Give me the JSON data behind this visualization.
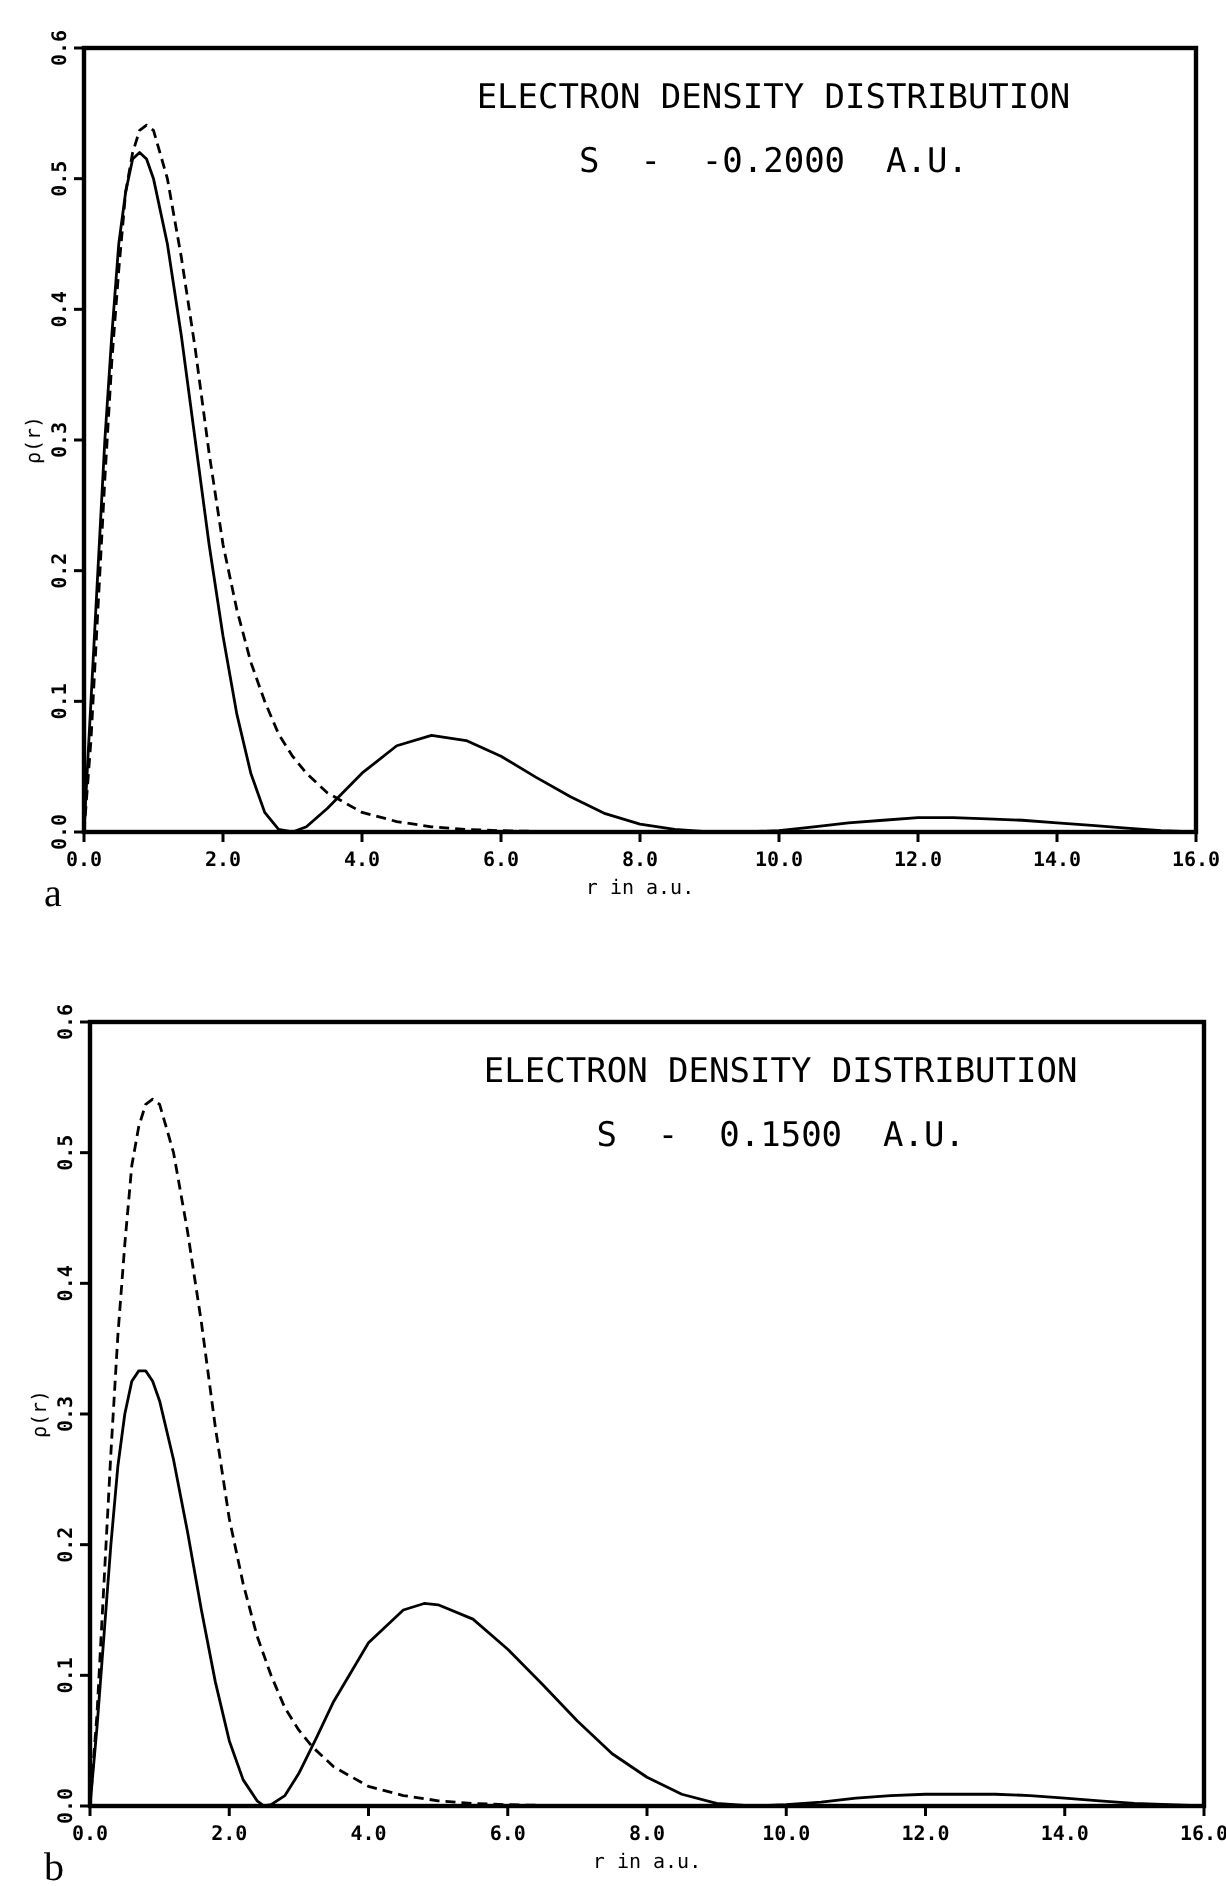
{
  "chart_data": [
    {
      "type": "line",
      "title": "ELECTRON DENSITY DISTRIBUTION",
      "subtitle": "S  -  -0.2000  A.U.",
      "xlabel": "r in a.u.",
      "ylabel": "ρ(r)",
      "annotations": [
        "a"
      ],
      "xlim": [
        0,
        16
      ],
      "ylim": [
        0,
        0.6
      ],
      "xticks": [
        {
          "value": 0,
          "label": "0.0"
        },
        {
          "value": 2,
          "label": "2.0"
        },
        {
          "value": 4,
          "label": "4.0"
        },
        {
          "value": 6,
          "label": "6.0"
        },
        {
          "value": 8,
          "label": "8.0"
        },
        {
          "value": 10,
          "label": "10.0"
        },
        {
          "value": 12,
          "label": "12.0"
        },
        {
          "value": 14,
          "label": "14.0"
        },
        {
          "value": 16,
          "label": "16.0"
        }
      ],
      "yticks": [
        {
          "value": 0,
          "label": "0.0"
        },
        {
          "value": 0.1,
          "label": "0.1"
        },
        {
          "value": 0.2,
          "label": "0.2"
        },
        {
          "value": 0.3,
          "label": "0.3"
        },
        {
          "value": 0.4,
          "label": "0.4"
        },
        {
          "value": 0.5,
          "label": "0.5"
        },
        {
          "value": 0.6,
          "label": "0.6"
        }
      ],
      "marker": "none",
      "series": [
        {
          "color": "#000000",
          "line_style": "solid",
          "x": [
            0,
            0.1,
            0.2,
            0.3,
            0.4,
            0.5,
            0.6,
            0.7,
            0.8,
            0.9,
            1.0,
            1.2,
            1.4,
            1.6,
            1.8,
            2.0,
            2.2,
            2.4,
            2.6,
            2.8,
            3.0,
            3.2,
            3.5,
            4.0,
            4.5,
            5.0,
            5.5,
            6.0,
            6.5,
            7.0,
            7.5,
            8.0,
            8.5,
            9.0,
            9.5,
            10,
            10.5,
            11,
            11.5,
            12,
            12.5,
            13,
            13.5,
            14,
            14.5,
            15,
            15.5,
            16
          ],
          "values": [
            0,
            0.1,
            0.2,
            0.3,
            0.38,
            0.45,
            0.49,
            0.515,
            0.52,
            0.515,
            0.5,
            0.45,
            0.38,
            0.3,
            0.22,
            0.15,
            0.09,
            0.045,
            0.015,
            0.002,
            0,
            0.004,
            0.018,
            0.045,
            0.066,
            0.074,
            0.07,
            0.058,
            0.042,
            0.027,
            0.014,
            0.006,
            0.002,
            0,
            0,
            0.001,
            0.004,
            0.007,
            0.009,
            0.011,
            0.011,
            0.01,
            0.009,
            0.007,
            0.005,
            0.003,
            0.001,
            0
          ]
        },
        {
          "color": "#000000",
          "line_style": "dashed",
          "x": [
            0,
            0.1,
            0.2,
            0.3,
            0.4,
            0.5,
            0.6,
            0.7,
            0.8,
            0.9,
            1.0,
            1.2,
            1.4,
            1.6,
            1.8,
            2.0,
            2.2,
            2.4,
            2.6,
            2.8,
            3.0,
            3.2,
            3.5,
            4.0,
            4.5,
            5.0,
            5.5,
            6.0,
            7.0,
            8.0
          ],
          "values": [
            0,
            0.07,
            0.17,
            0.27,
            0.36,
            0.43,
            0.49,
            0.52,
            0.537,
            0.541,
            0.537,
            0.5,
            0.44,
            0.37,
            0.29,
            0.22,
            0.17,
            0.13,
            0.1,
            0.075,
            0.058,
            0.045,
            0.03,
            0.015,
            0.008,
            0.004,
            0.002,
            0.001,
            0,
            0
          ]
        }
      ]
    },
    {
      "type": "line",
      "title": "ELECTRON DENSITY DISTRIBUTION",
      "subtitle": "S  -  0.1500  A.U.",
      "xlabel": "r in a.u.",
      "ylabel": "ρ(r)",
      "annotations": [
        "b"
      ],
      "xlim": [
        0,
        16
      ],
      "ylim": [
        0,
        0.6
      ],
      "xticks": [
        {
          "value": 0,
          "label": "0.0"
        },
        {
          "value": 2,
          "label": "2.0"
        },
        {
          "value": 4,
          "label": "4.0"
        },
        {
          "value": 6,
          "label": "6.0"
        },
        {
          "value": 8,
          "label": "8.0"
        },
        {
          "value": 10,
          "label": "10.0"
        },
        {
          "value": 12,
          "label": "12.0"
        },
        {
          "value": 14,
          "label": "14.0"
        },
        {
          "value": 16,
          "label": "16.0"
        }
      ],
      "yticks": [
        {
          "value": 0,
          "label": "0.0"
        },
        {
          "value": 0.1,
          "label": "0.1"
        },
        {
          "value": 0.2,
          "label": "0.2"
        },
        {
          "value": 0.3,
          "label": "0.3"
        },
        {
          "value": 0.4,
          "label": "0.4"
        },
        {
          "value": 0.5,
          "label": "0.5"
        },
        {
          "value": 0.6,
          "label": "0.6"
        }
      ],
      "marker": "none",
      "series": [
        {
          "color": "#000000",
          "line_style": "solid",
          "x": [
            0,
            0.1,
            0.2,
            0.3,
            0.4,
            0.5,
            0.6,
            0.7,
            0.8,
            0.9,
            1.0,
            1.2,
            1.4,
            1.6,
            1.8,
            2.0,
            2.2,
            2.4,
            2.5,
            2.6,
            2.8,
            3.0,
            3.25,
            3.5,
            4.0,
            4.5,
            4.8,
            5.0,
            5.5,
            6.0,
            6.5,
            7.0,
            7.5,
            8.0,
            8.5,
            9.0,
            9.5,
            10,
            10.5,
            11,
            11.5,
            12,
            12.5,
            13,
            13.5,
            14,
            14.5,
            15,
            15.5,
            16
          ],
          "values": [
            0,
            0.06,
            0.13,
            0.2,
            0.26,
            0.3,
            0.325,
            0.333,
            0.333,
            0.325,
            0.31,
            0.265,
            0.21,
            0.15,
            0.095,
            0.05,
            0.02,
            0.004,
            0,
            0.001,
            0.008,
            0.025,
            0.052,
            0.08,
            0.125,
            0.15,
            0.155,
            0.154,
            0.143,
            0.12,
            0.093,
            0.065,
            0.04,
            0.022,
            0.009,
            0.002,
            0,
            0.001,
            0.003,
            0.006,
            0.008,
            0.009,
            0.009,
            0.009,
            0.008,
            0.006,
            0.004,
            0.002,
            0.001,
            0
          ]
        },
        {
          "color": "#000000",
          "line_style": "dashed",
          "x": [
            0,
            0.1,
            0.2,
            0.3,
            0.4,
            0.5,
            0.6,
            0.7,
            0.8,
            0.9,
            1.0,
            1.2,
            1.4,
            1.6,
            1.8,
            2.0,
            2.2,
            2.4,
            2.6,
            2.8,
            3.0,
            3.2,
            3.5,
            4.0,
            4.5,
            5.0,
            5.5,
            6.0,
            7.0,
            8.0
          ],
          "values": [
            0,
            0.07,
            0.17,
            0.27,
            0.36,
            0.43,
            0.49,
            0.52,
            0.537,
            0.541,
            0.537,
            0.5,
            0.44,
            0.37,
            0.29,
            0.22,
            0.17,
            0.13,
            0.1,
            0.075,
            0.058,
            0.045,
            0.03,
            0.015,
            0.008,
            0.004,
            0.002,
            0.001,
            0,
            0
          ]
        }
      ]
    }
  ]
}
